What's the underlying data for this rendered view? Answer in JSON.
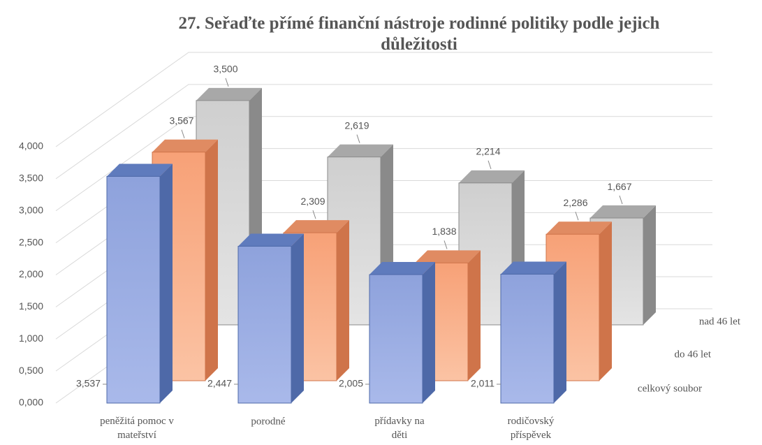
{
  "chart_data": {
    "type": "bar3d",
    "title": "27. Seřaďte přímé finanční nástroje rodinné politiky podle jejich důležitosti",
    "categories": [
      "peněžitá pomoc v mateřství",
      "porodné",
      "přídavky na děti",
      "rodičovský příspěvek"
    ],
    "series": [
      {
        "name": "celkový soubor",
        "color": "#8fa5df",
        "values": [
          3.537,
          2.447,
          2.005,
          2.011
        ],
        "value_labels": [
          "3,537",
          "2,447",
          "2,005",
          "2,011"
        ]
      },
      {
        "name": "do 46 let",
        "color": "#f9a77f",
        "values": [
          3.567,
          2.309,
          1.838,
          2.286
        ],
        "value_labels": [
          "3,567",
          "2,309",
          "1,838",
          "2,286"
        ]
      },
      {
        "name": "nad 46 let",
        "color": "#d2d2d2",
        "values": [
          3.5,
          2.619,
          2.214,
          1.667
        ],
        "value_labels": [
          "3,500",
          "2,619",
          "2,214",
          "1,667"
        ]
      }
    ],
    "ylim": [
      0,
      4
    ],
    "yticks": [
      {
        "value": 0,
        "label": "0,000"
      },
      {
        "value": 0.5,
        "label": "0,500"
      },
      {
        "value": 1,
        "label": "1,000"
      },
      {
        "value": 1.5,
        "label": "1,500"
      },
      {
        "value": 2,
        "label": "2,000"
      },
      {
        "value": 2.5,
        "label": "2,500"
      },
      {
        "value": 3,
        "label": "3,000"
      },
      {
        "value": 3.5,
        "label": "3,500"
      },
      {
        "value": 4,
        "label": "4,000"
      }
    ],
    "grid": true
  }
}
